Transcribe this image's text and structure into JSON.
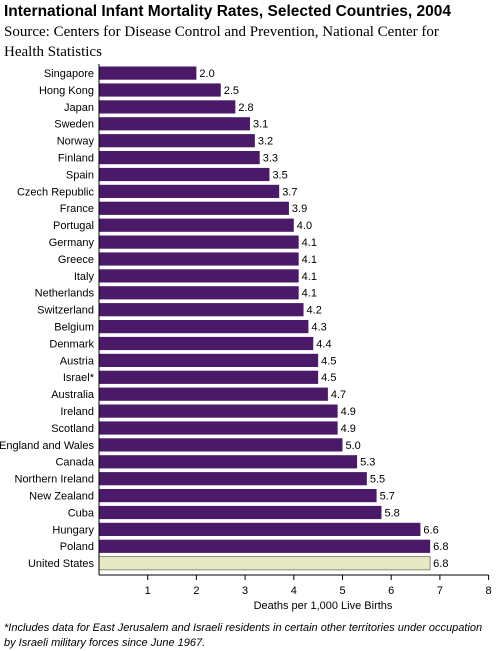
{
  "chart_data": {
    "type": "bar",
    "orientation": "horizontal",
    "title": "International Infant Mortality Rates, Selected Countries, 2004",
    "subtitle": "Source: Centers for Disease Control and Prevention, National Center for Health Statistics",
    "xlabel": "Deaths per 1,000 Live Births",
    "ylabel": "",
    "xlim": [
      0,
      8
    ],
    "xticks": [
      1,
      2,
      3,
      4,
      5,
      6,
      7,
      8
    ],
    "grid": false,
    "categories": [
      "Singapore",
      "Hong Kong",
      "Japan",
      "Sweden",
      "Norway",
      "Finland",
      "Spain",
      "Czech Republic",
      "France",
      "Portugal",
      "Germany",
      "Greece",
      "Italy",
      "Netherlands",
      "Switzerland",
      "Belgium",
      "Denmark",
      "Austria",
      "Israel*",
      "Australia",
      "Ireland",
      "Scotland",
      "England and Wales",
      "Canada",
      "Northern Ireland",
      "New Zealand",
      "Cuba",
      "Hungary",
      "Poland",
      "United States"
    ],
    "values": [
      2.0,
      2.5,
      2.8,
      3.1,
      3.2,
      3.3,
      3.5,
      3.7,
      3.9,
      4.0,
      4.1,
      4.1,
      4.1,
      4.1,
      4.2,
      4.3,
      4.4,
      4.5,
      4.5,
      4.7,
      4.9,
      4.9,
      5.0,
      5.3,
      5.5,
      5.7,
      5.8,
      6.6,
      6.8,
      6.8
    ],
    "value_labels": [
      "2.0",
      "2.5",
      "2.8",
      "3.1",
      "3.2",
      "3.3",
      "3.5",
      "3.7",
      "3.9",
      "4.0",
      "4.1",
      "4.1",
      "4.1",
      "4.1",
      "4.2",
      "4.3",
      "4.4",
      "4.5",
      "4.5",
      "4.7",
      "4.9",
      "4.9",
      "5.0",
      "5.3",
      "5.5",
      "5.7",
      "5.8",
      "6.6",
      "6.8",
      "6.8"
    ],
    "highlight_category": "United States",
    "colors": {
      "bar": "#4a1968",
      "highlight_bar": "#e6e9c3",
      "highlight_border": "#8b8b73",
      "axis": "#000000"
    }
  },
  "footnote": "*Includes data for East Jerusalem and Israeli residents in certain other territories under occupation by Israeli military forces since June 1967."
}
